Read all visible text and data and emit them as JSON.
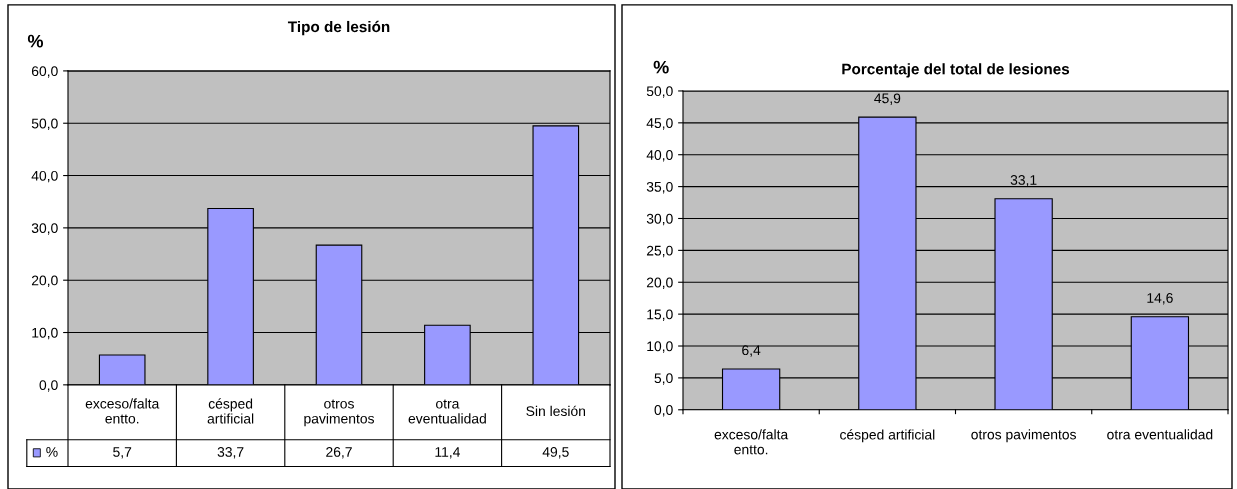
{
  "chart_data": [
    {
      "type": "bar",
      "title": "Tipo de lesión",
      "ylabel": "%",
      "categories": [
        "exceso/falta\nentto.",
        "césped\nartificial",
        "otros\npavimentos",
        "otra\neventualidad",
        "Sin lesión"
      ],
      "series": [
        {
          "name": "%",
          "color": "#9999ff",
          "values": [
            5.7,
            33.7,
            26.7,
            11.4,
            49.5
          ],
          "value_labels": [
            "5,7",
            "33,7",
            "26,7",
            "11,4",
            "49,5"
          ]
        }
      ],
      "ylim": [
        0,
        60
      ],
      "yticks": [
        {
          "value": 0,
          "label": "0,0"
        },
        {
          "value": 10,
          "label": "10,0"
        },
        {
          "value": 20,
          "label": "20,0"
        },
        {
          "value": 30,
          "label": "30,0"
        },
        {
          "value": 40,
          "label": "40,0"
        },
        {
          "value": 50,
          "label": "50,0"
        },
        {
          "value": 60,
          "label": "60,0"
        }
      ],
      "grid": "y",
      "legend": "bottom"
    },
    {
      "type": "bar",
      "title": "Porcentaje del total de lesiones",
      "ylabel": "%",
      "categories": [
        "exceso/falta\nentto.",
        "césped artificial",
        "otros pavimentos",
        "otra eventualidad"
      ],
      "series": [
        {
          "color": "#9999ff",
          "values": [
            6.4,
            45.9,
            33.1,
            14.6
          ],
          "value_labels": [
            "6,4",
            "45,9",
            "33,1",
            "14,6"
          ]
        }
      ],
      "ylim": [
        0,
        50
      ],
      "yticks": [
        {
          "value": 0,
          "label": "0,0"
        },
        {
          "value": 5,
          "label": "5,0"
        },
        {
          "value": 10,
          "label": "10,0"
        },
        {
          "value": 15,
          "label": "15,0"
        },
        {
          "value": 20,
          "label": "20,0"
        },
        {
          "value": 25,
          "label": "25,0"
        },
        {
          "value": 30,
          "label": "30,0"
        },
        {
          "value": 35,
          "label": "35,0"
        },
        {
          "value": 40,
          "label": "40,0"
        },
        {
          "value": 45,
          "label": "45,0"
        },
        {
          "value": 50,
          "label": "50,0"
        }
      ],
      "grid": "y"
    }
  ]
}
